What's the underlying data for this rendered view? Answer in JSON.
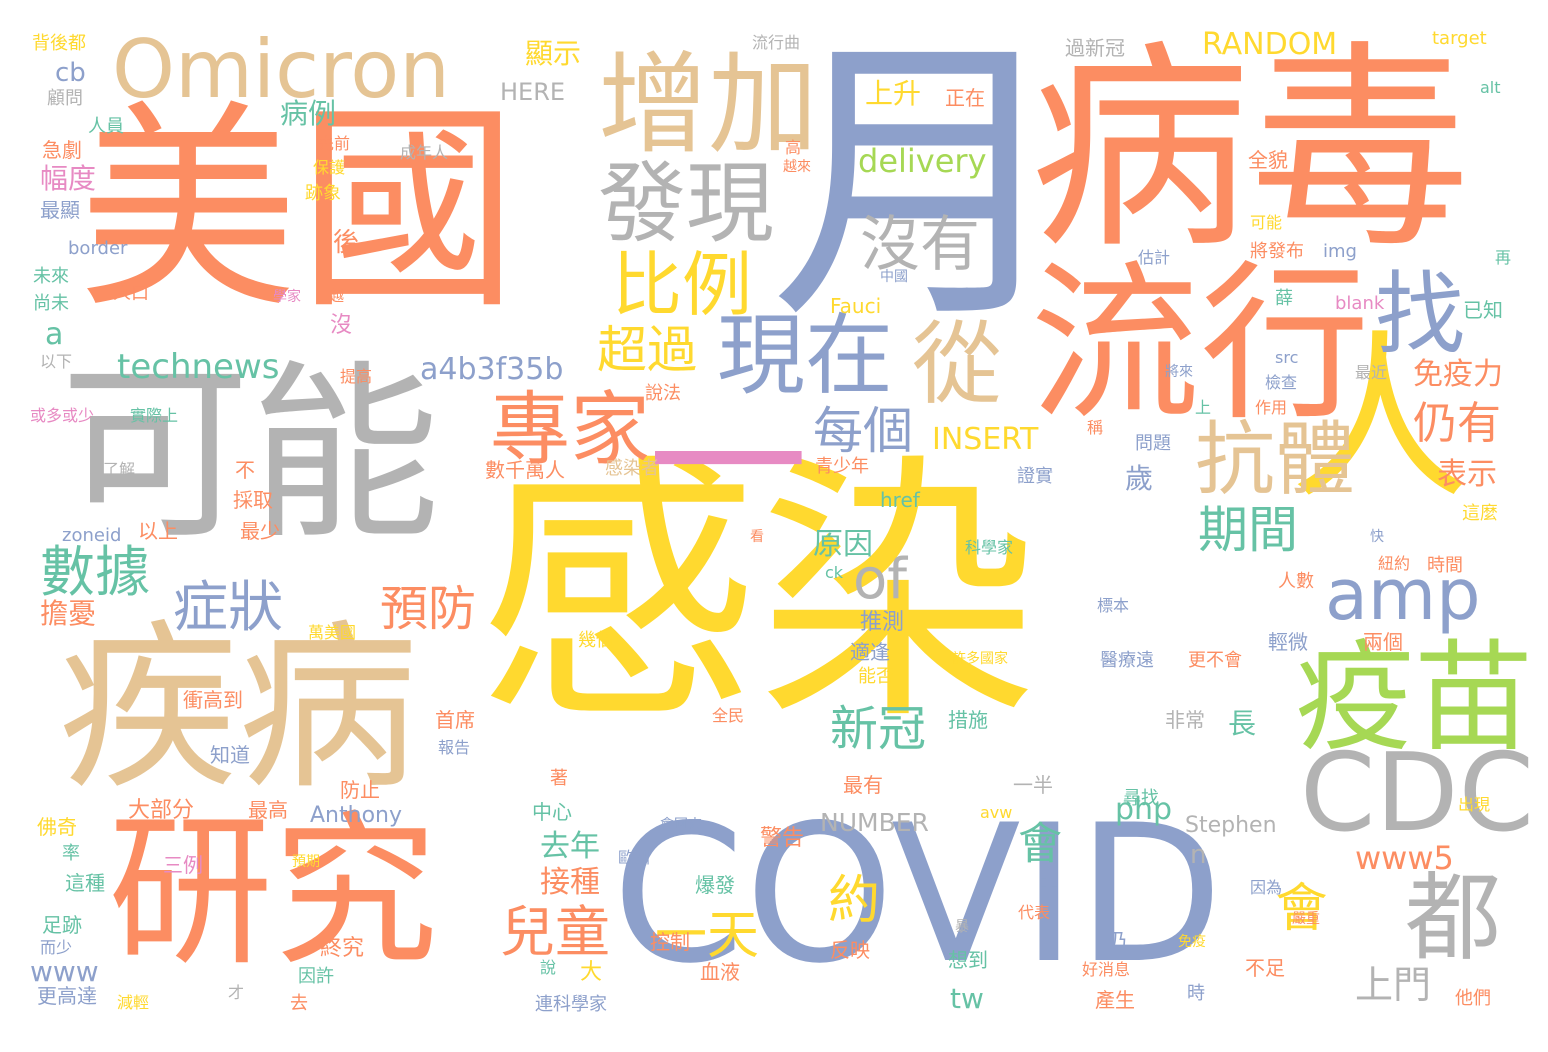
{
  "colors": {
    "orange": "#fc8d62",
    "blue": "#8da0cb",
    "yellow": "#ffd92f",
    "tan": "#e5c494",
    "gray": "#b3b3b3",
    "green": "#a6d854",
    "pink": "#e78ac3",
    "teal": "#66c2a5"
  },
  "words": [
    {
      "text": "感染",
      "color": "yellow"
    },
    {
      "text": "COVID",
      "color": "blue"
    },
    {
      "text": "美國",
      "color": "orange"
    },
    {
      "text": "月",
      "color": "blue"
    },
    {
      "text": "病毒",
      "color": "orange"
    },
    {
      "text": "可能",
      "color": "gray"
    },
    {
      "text": "疾病",
      "color": "tan"
    },
    {
      "text": "研究",
      "color": "orange"
    },
    {
      "text": "流行",
      "color": "orange"
    },
    {
      "text": "人",
      "color": "yellow"
    },
    {
      "text": "Omicron",
      "color": "tan"
    },
    {
      "text": "增加",
      "color": "tan"
    },
    {
      "text": "發現",
      "color": "gray"
    },
    {
      "text": "現在",
      "color": "blue"
    },
    {
      "text": "一",
      "color": "pink"
    },
    {
      "text": "疫苗",
      "color": "green"
    },
    {
      "text": "CDC",
      "color": "gray"
    },
    {
      "text": "都",
      "color": "gray"
    },
    {
      "text": "找",
      "color": "blue"
    },
    {
      "text": "從",
      "color": "tan"
    },
    {
      "text": "專家",
      "color": "orange"
    },
    {
      "text": "抗體",
      "color": "tan"
    },
    {
      "text": "比例",
      "color": "yellow"
    },
    {
      "text": "沒有",
      "color": "gray"
    },
    {
      "text": "amp",
      "color": "blue"
    },
    {
      "text": "數據",
      "color": "teal"
    },
    {
      "text": "症狀",
      "color": "blue"
    },
    {
      "text": "of",
      "color": "gray"
    },
    {
      "text": "預防",
      "color": "orange"
    },
    {
      "text": "期間",
      "color": "teal"
    },
    {
      "text": "超過",
      "color": "yellow"
    },
    {
      "text": "每個",
      "color": "blue"
    },
    {
      "text": "約",
      "color": "yellow"
    },
    {
      "text": "一天",
      "color": "yellow"
    },
    {
      "text": "新冠",
      "color": "teal"
    },
    {
      "text": "兒童",
      "color": "orange"
    },
    {
      "text": "仍有",
      "color": "orange"
    },
    {
      "text": "會",
      "color": "teal"
    },
    {
      "text": "會",
      "color": "yellow"
    },
    {
      "text": "www5",
      "color": "orange"
    },
    {
      "text": "technews",
      "color": "teal"
    },
    {
      "text": "a4b3f35b",
      "color": "blue"
    },
    {
      "text": "INSERT",
      "color": "yellow"
    },
    {
      "text": "delivery",
      "color": "green"
    },
    {
      "text": "RANDOM",
      "color": "yellow"
    },
    {
      "text": "HERE",
      "color": "gray"
    },
    {
      "text": "NUMBER",
      "color": "gray"
    },
    {
      "text": "php",
      "color": "teal"
    },
    {
      "text": "上門",
      "color": "gray"
    },
    {
      "text": "tw",
      "color": "teal"
    },
    {
      "text": "www",
      "color": "blue"
    },
    {
      "text": "免疫力",
      "color": "orange"
    },
    {
      "text": "表示",
      "color": "orange"
    },
    {
      "text": "原因",
      "color": "teal"
    },
    {
      "text": "去年",
      "color": "teal"
    },
    {
      "text": "接種",
      "color": "orange"
    },
    {
      "text": "上升",
      "color": "yellow"
    },
    {
      "text": "顯示",
      "color": "yellow"
    },
    {
      "text": "病例",
      "color": "teal"
    },
    {
      "text": "幅度",
      "color": "pink"
    },
    {
      "text": "擔憂",
      "color": "orange"
    },
    {
      "text": "a",
      "color": "teal"
    },
    {
      "text": "cb",
      "color": "blue"
    },
    {
      "text": "Anthony",
      "color": "blue"
    },
    {
      "text": "Stephen",
      "color": "gray"
    },
    {
      "text": "Fauci",
      "color": "yellow"
    },
    {
      "text": "zoneid",
      "color": "blue"
    },
    {
      "text": "border",
      "color": "blue"
    },
    {
      "text": "href",
      "color": "teal"
    },
    {
      "text": "blank",
      "color": "pink"
    },
    {
      "text": "img",
      "color": "blue"
    },
    {
      "text": "src",
      "color": "blue"
    },
    {
      "text": "target",
      "color": "yellow"
    },
    {
      "text": "alt",
      "color": "teal"
    },
    {
      "text": "avw",
      "color": "yellow"
    },
    {
      "text": "ck",
      "color": "teal"
    },
    {
      "text": "n",
      "color": "gray"
    },
    {
      "text": "推測",
      "color": "blue"
    },
    {
      "text": "適逢",
      "color": "blue"
    },
    {
      "text": "能否",
      "color": "yellow"
    },
    {
      "text": "措施",
      "color": "teal"
    },
    {
      "text": "非常",
      "color": "gray"
    },
    {
      "text": "長",
      "color": "teal"
    },
    {
      "text": "歲",
      "color": "blue"
    },
    {
      "text": "最有",
      "color": "orange"
    },
    {
      "text": "一半",
      "color": "gray"
    },
    {
      "text": "警告",
      "color": "orange"
    },
    {
      "text": "大部分",
      "color": "orange"
    },
    {
      "text": "最高",
      "color": "orange"
    },
    {
      "text": "防止",
      "color": "orange"
    },
    {
      "text": "中心",
      "color": "teal"
    },
    {
      "text": "首席",
      "color": "orange"
    },
    {
      "text": "報告",
      "color": "blue"
    },
    {
      "text": "著",
      "color": "orange"
    },
    {
      "text": "爆發",
      "color": "teal"
    },
    {
      "text": "控制",
      "color": "orange"
    },
    {
      "text": "血液",
      "color": "orange"
    },
    {
      "text": "反映",
      "color": "orange"
    },
    {
      "text": "想到",
      "color": "teal"
    },
    {
      "text": "好消息",
      "color": "orange"
    },
    {
      "text": "產生",
      "color": "orange"
    },
    {
      "text": "不足",
      "color": "orange"
    },
    {
      "text": "時",
      "color": "blue"
    },
    {
      "text": "他們",
      "color": "orange"
    },
    {
      "text": "連科學家",
      "color": "blue"
    },
    {
      "text": "大",
      "color": "yellow"
    },
    {
      "text": "仍",
      "color": "blue"
    },
    {
      "text": "說",
      "color": "teal"
    },
    {
      "text": "終究",
      "color": "orange"
    },
    {
      "text": "因許",
      "color": "teal"
    },
    {
      "text": "去",
      "color": "orange"
    },
    {
      "text": "才",
      "color": "gray"
    },
    {
      "text": "更高達",
      "color": "blue"
    },
    {
      "text": "減輕",
      "color": "yellow"
    },
    {
      "text": "足跡",
      "color": "teal"
    },
    {
      "text": "這種",
      "color": "teal"
    },
    {
      "text": "三例",
      "color": "pink"
    },
    {
      "text": "率",
      "color": "teal"
    },
    {
      "text": "佛奇",
      "color": "yellow"
    },
    {
      "text": "衝高到",
      "color": "orange"
    },
    {
      "text": "知道",
      "color": "blue"
    },
    {
      "text": "萬美國",
      "color": "yellow"
    },
    {
      "text": "最少",
      "color": "orange"
    },
    {
      "text": "以上",
      "color": "orange"
    },
    {
      "text": "採取",
      "color": "orange"
    },
    {
      "text": "不",
      "color": "orange"
    },
    {
      "text": "了解",
      "color": "gray"
    },
    {
      "text": "實際上",
      "color": "teal"
    },
    {
      "text": "或多或少",
      "color": "pink"
    },
    {
      "text": "以下",
      "color": "gray"
    },
    {
      "text": "提高",
      "color": "orange"
    },
    {
      "text": "尚未",
      "color": "teal"
    },
    {
      "text": "未來",
      "color": "teal"
    },
    {
      "text": "人口",
      "color": "orange"
    },
    {
      "text": "學家",
      "color": "pink"
    },
    {
      "text": "後",
      "color": "orange"
    },
    {
      "text": "沒",
      "color": "pink"
    },
    {
      "text": "跡象",
      "color": "yellow"
    },
    {
      "text": "保護",
      "color": "yellow"
    },
    {
      "text": "先前",
      "color": "orange"
    },
    {
      "text": "人員",
      "color": "teal"
    },
    {
      "text": "顧問",
      "color": "gray"
    },
    {
      "text": "背後都",
      "color": "yellow"
    },
    {
      "text": "急劇",
      "color": "orange"
    },
    {
      "text": "最顯",
      "color": "blue"
    },
    {
      "text": "流行曲",
      "color": "gray"
    },
    {
      "text": "成年人",
      "color": "gray"
    },
    {
      "text": "高",
      "color": "orange"
    },
    {
      "text": "越來",
      "color": "orange"
    },
    {
      "text": "正在",
      "color": "orange"
    },
    {
      "text": "過新冠",
      "color": "gray"
    },
    {
      "text": "全貌",
      "color": "orange"
    },
    {
      "text": "可能",
      "color": "yellow"
    },
    {
      "text": "將發布",
      "color": "orange"
    },
    {
      "text": "估計",
      "color": "blue"
    },
    {
      "text": "中國",
      "color": "blue"
    },
    {
      "text": "再",
      "color": "teal"
    },
    {
      "text": "已知",
      "color": "teal"
    },
    {
      "text": "薛",
      "color": "teal"
    },
    {
      "text": "最近",
      "color": "gray"
    },
    {
      "text": "將來",
      "color": "blue"
    },
    {
      "text": "檢查",
      "color": "blue"
    },
    {
      "text": "作用",
      "color": "orange"
    },
    {
      "text": "上",
      "color": "teal"
    },
    {
      "text": "稱",
      "color": "orange"
    },
    {
      "text": "問題",
      "color": "blue"
    },
    {
      "text": "說法",
      "color": "orange"
    },
    {
      "text": "證實",
      "color": "blue"
    },
    {
      "text": "數千萬人",
      "color": "orange"
    },
    {
      "text": "感染者",
      "color": "tan"
    },
    {
      "text": "青少年",
      "color": "orange"
    },
    {
      "text": "看",
      "color": "orange"
    },
    {
      "text": "科學家",
      "color": "teal"
    },
    {
      "text": "快",
      "color": "blue"
    },
    {
      "text": "紐約",
      "color": "orange"
    },
    {
      "text": "時間",
      "color": "orange"
    },
    {
      "text": "這麼",
      "color": "yellow"
    },
    {
      "text": "人數",
      "color": "orange"
    },
    {
      "text": "標本",
      "color": "blue"
    },
    {
      "text": "輕微",
      "color": "blue"
    },
    {
      "text": "兩個",
      "color": "orange"
    },
    {
      "text": "醫療遠",
      "color": "blue"
    },
    {
      "text": "更不會",
      "color": "orange"
    },
    {
      "text": "許多國家",
      "color": "yellow"
    },
    {
      "text": "全民",
      "color": "orange"
    },
    {
      "text": "會回來",
      "color": "blue"
    },
    {
      "text": "歐洲",
      "color": "blue"
    },
    {
      "text": "幾個",
      "color": "yellow"
    },
    {
      "text": "尋找",
      "color": "teal"
    },
    {
      "text": "出現",
      "color": "yellow"
    },
    {
      "text": "因為",
      "color": "blue"
    },
    {
      "text": "嚴重",
      "color": "orange"
    },
    {
      "text": "代表",
      "color": "orange"
    },
    {
      "text": "免疫",
      "color": "yellow"
    },
    {
      "text": "非",
      "color": "blue"
    },
    {
      "text": "暴",
      "color": "gray"
    },
    {
      "text": "預期",
      "color": "yellow"
    },
    {
      "text": "而少",
      "color": "blue"
    },
    {
      "text": "越",
      "color": "orange"
    }
  ]
}
